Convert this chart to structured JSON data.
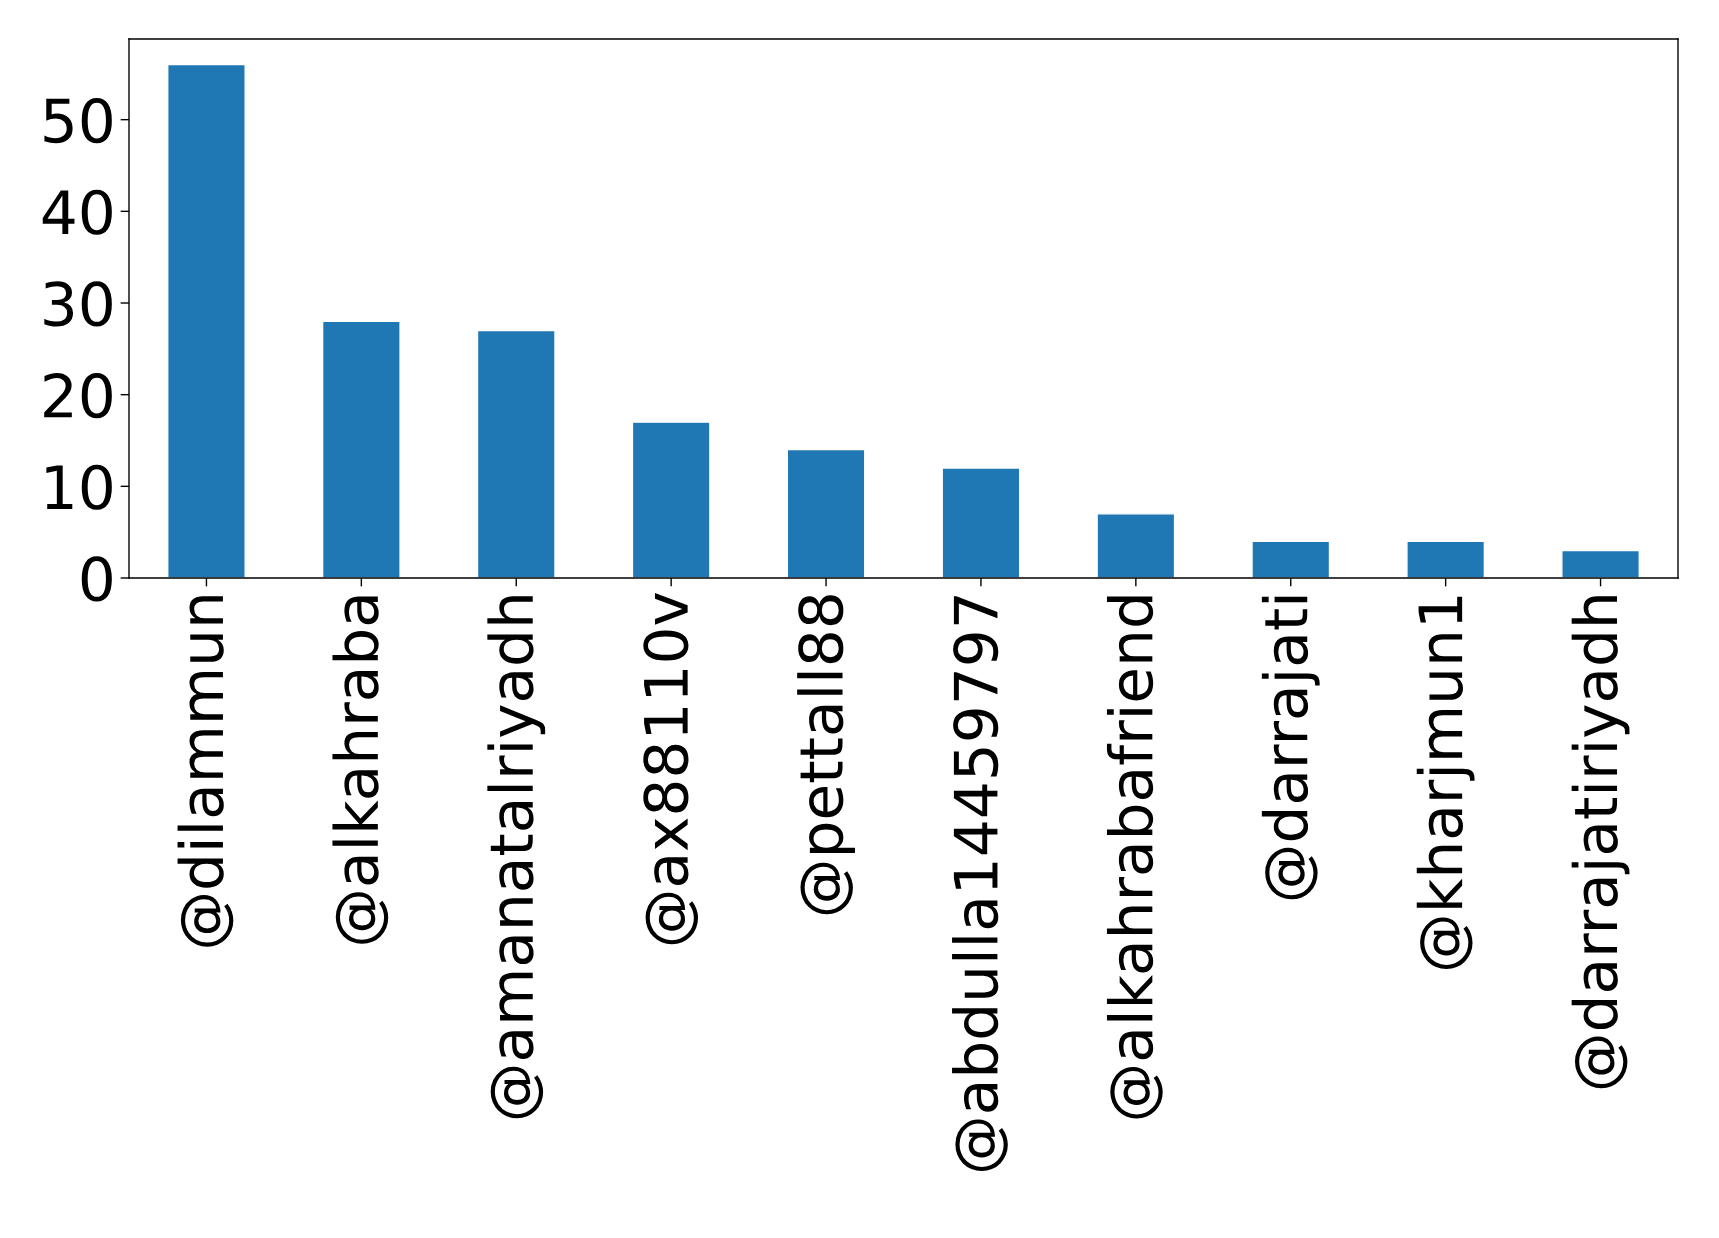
{
  "chart_data": {
    "type": "bar",
    "categories": [
      "@dilammun",
      "@alkahraba",
      "@amanatalriyadh",
      "@ax88110v",
      "@pettall88",
      "@abdulla14459797",
      "@alkahrabafriend",
      "@darrajati",
      "@kharjmun1",
      "@darrajatiriyadh"
    ],
    "values": [
      56,
      28,
      27,
      17,
      14,
      12,
      7,
      4,
      4,
      3
    ],
    "color": "#1f77b4",
    "ylim": [
      0,
      58.8
    ],
    "yticks": [
      0,
      10,
      20,
      30,
      40,
      50
    ],
    "grid": false
  }
}
